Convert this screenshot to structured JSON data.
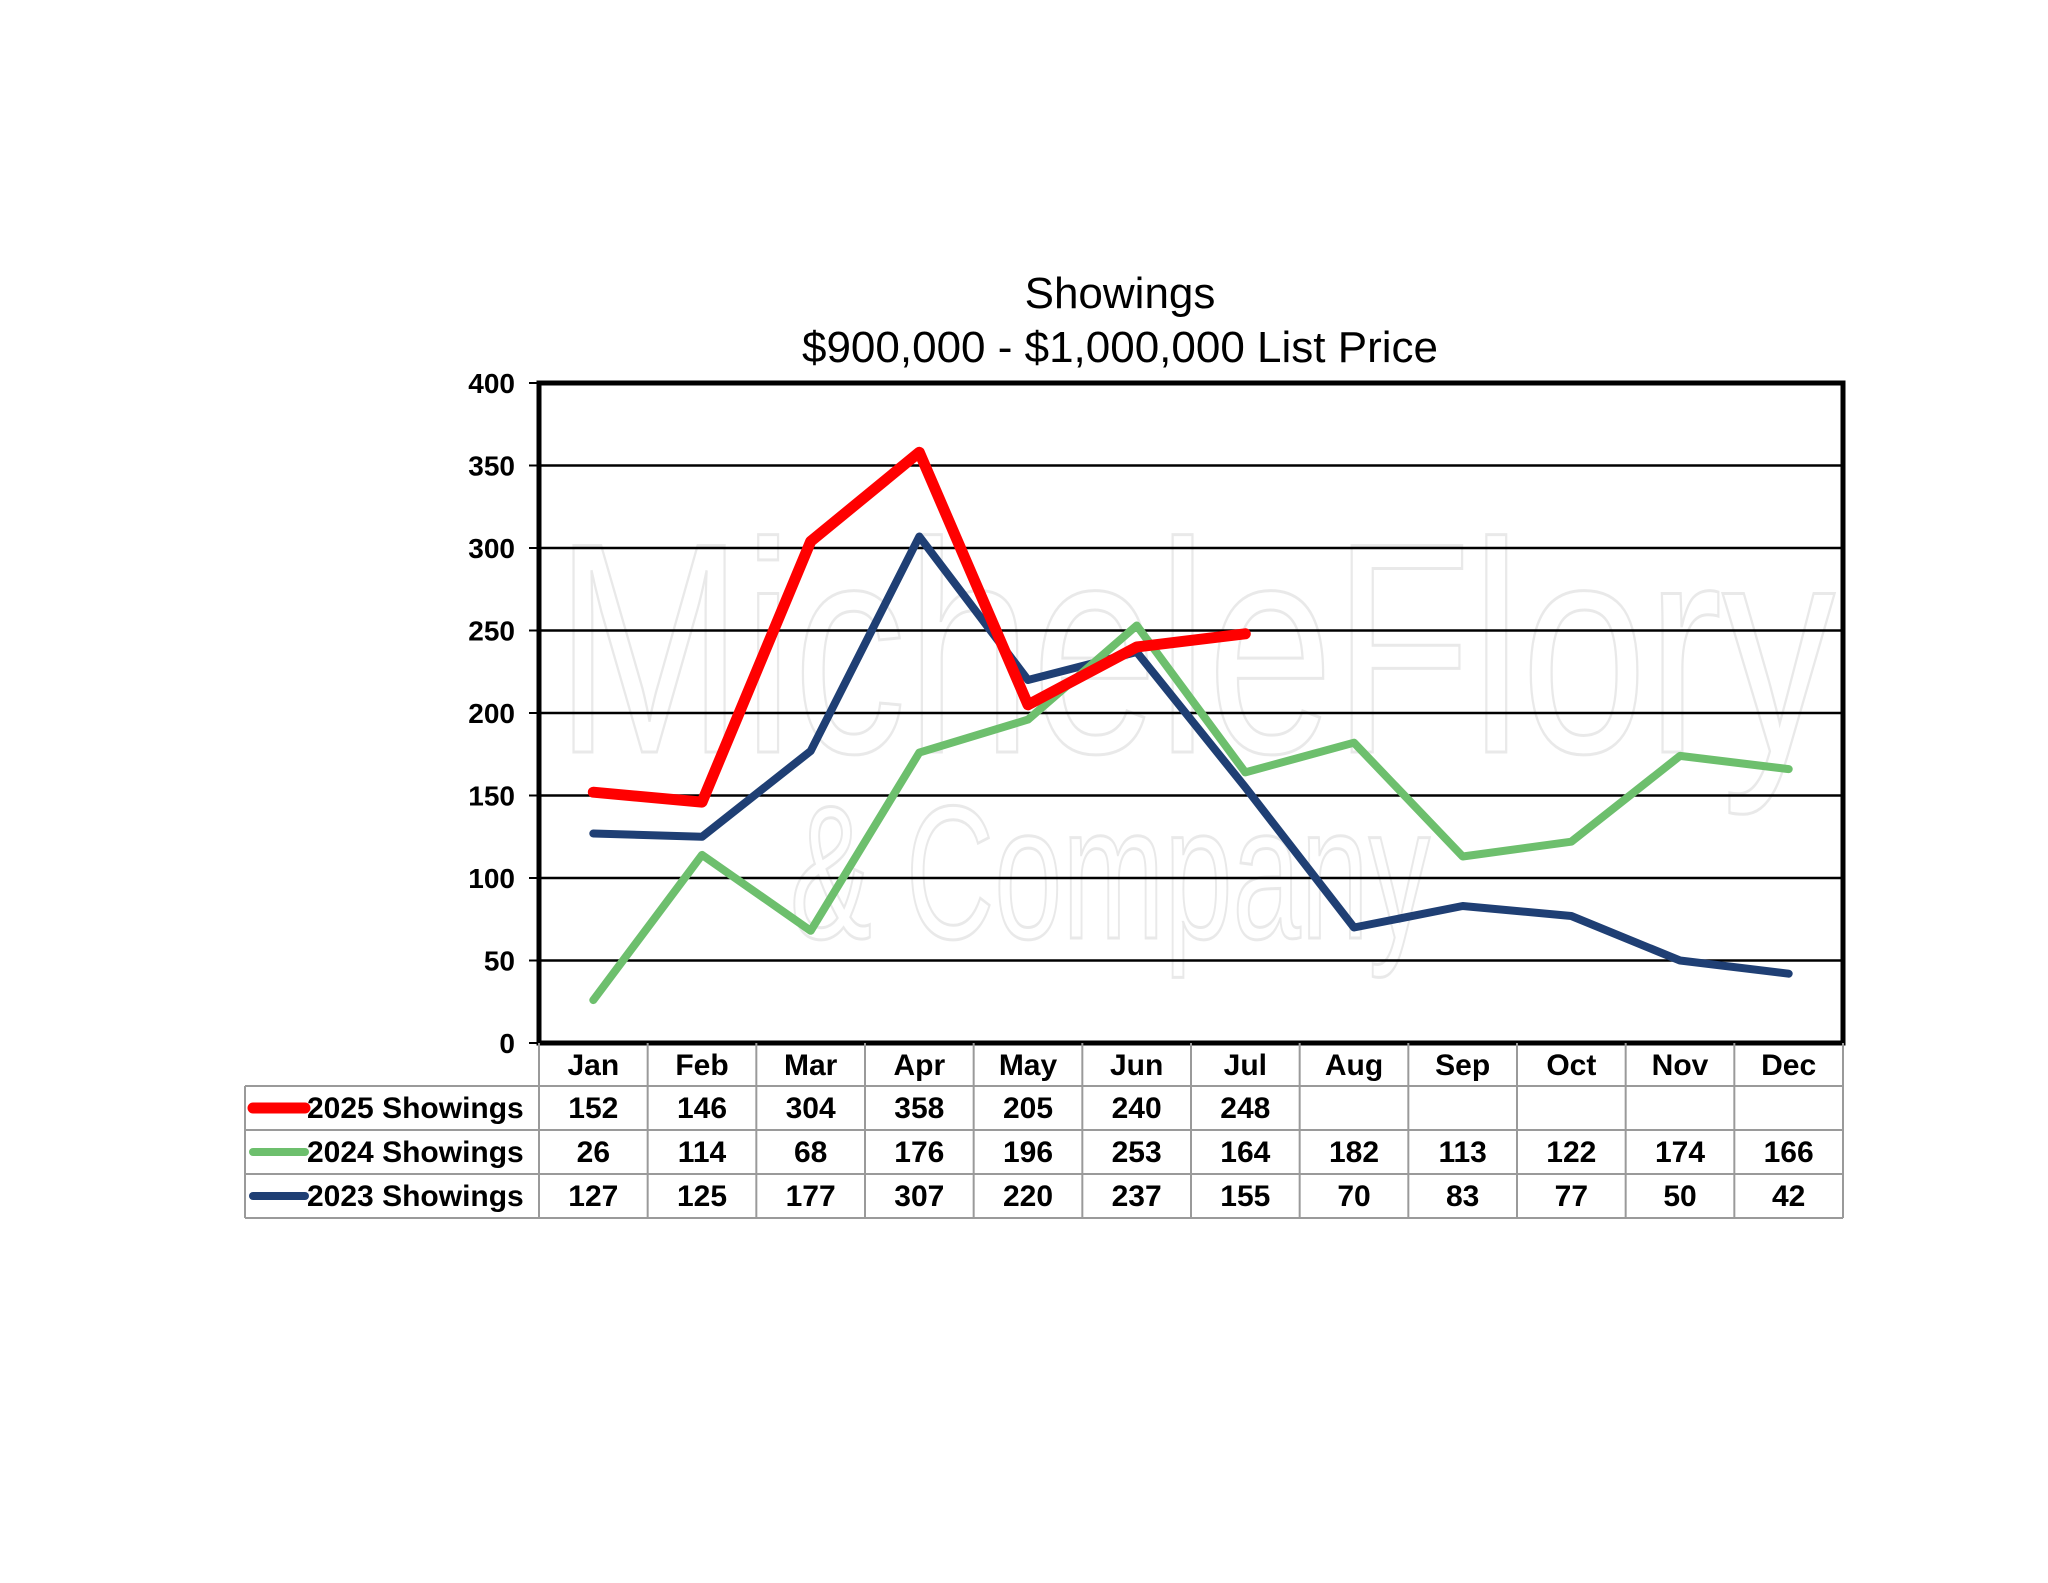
{
  "chart_data": {
    "type": "line",
    "title": "Showings",
    "subtitle": "$900,000 - $1,000,000 List Price",
    "categories": [
      "Jan",
      "Feb",
      "Mar",
      "Apr",
      "May",
      "Jun",
      "Jul",
      "Aug",
      "Sep",
      "Oct",
      "Nov",
      "Dec"
    ],
    "ylim": [
      0,
      400
    ],
    "yticks": [
      0,
      50,
      100,
      150,
      200,
      250,
      300,
      350,
      400
    ],
    "grid": true,
    "legend": "data-table-below",
    "series": [
      {
        "name": "2025 Showings",
        "color": "#ff0000",
        "values": [
          152,
          146,
          304,
          358,
          205,
          240,
          248,
          null,
          null,
          null,
          null,
          null
        ]
      },
      {
        "name": "2024 Showings",
        "color": "#6dbf6d",
        "values": [
          26,
          114,
          68,
          176,
          196,
          253,
          164,
          182,
          113,
          122,
          174,
          166
        ]
      },
      {
        "name": "2023 Showings",
        "color": "#1f3f74",
        "values": [
          127,
          125,
          177,
          307,
          220,
          237,
          155,
          70,
          83,
          77,
          50,
          42
        ]
      }
    ]
  },
  "watermark": {
    "line1": "MicheleFlory",
    "line2": "& Company"
  }
}
